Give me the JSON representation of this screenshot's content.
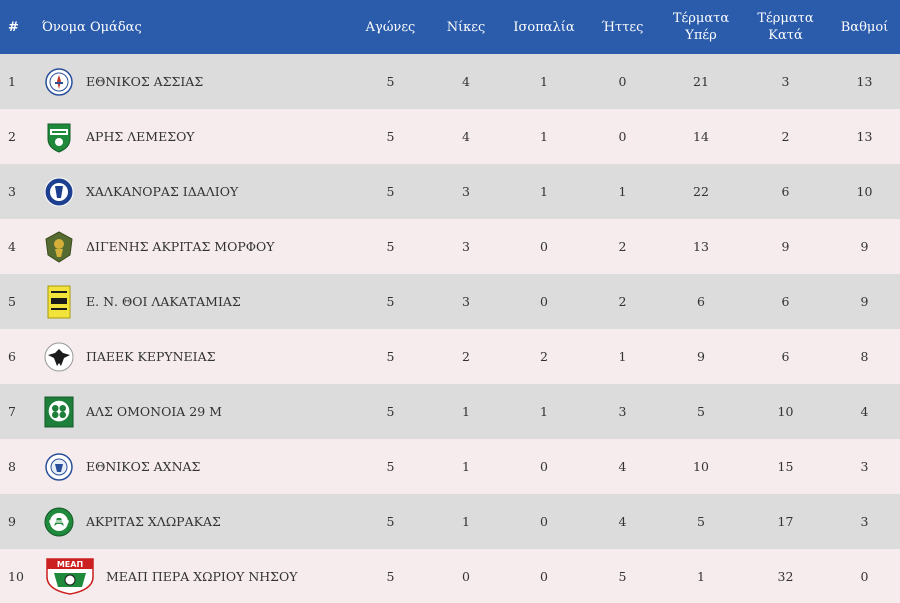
{
  "header": {
    "rank": "#",
    "team": "Όνομα Ομάδας",
    "played": "Αγώνες",
    "wins": "Νίκες",
    "draws": "Ισοπαλία",
    "losses": "Ήττες",
    "goals_for_1": "Τέρματα",
    "goals_for_2": "Υπέρ",
    "goals_against_1": "Τέρματα",
    "goals_against_2": "Κατά",
    "points": "Βαθμοί"
  },
  "colors": {
    "header_bg": "#2b5cab",
    "row_odd": "#dcdcdc",
    "row_even": "#f6ecee"
  },
  "rows": [
    {
      "rank": "1",
      "team": "ΕΘΝΙΚΟΣ ΑΣΣΙΑΣ",
      "logo_icon": "ethnikos-assias-crest-icon",
      "played": "5",
      "wins": "4",
      "draws": "1",
      "losses": "0",
      "gf": "21",
      "ga": "3",
      "pts": "13"
    },
    {
      "rank": "2",
      "team": "ΑΡΗΣ ΛΕΜΕΣΟΥ",
      "logo_icon": "aris-limassol-crest-icon",
      "played": "5",
      "wins": "4",
      "draws": "1",
      "losses": "0",
      "gf": "14",
      "ga": "2",
      "pts": "13"
    },
    {
      "rank": "3",
      "team": "ΧΑΛΚΑΝΟΡΑΣ ΙΔΑΛΙΟΥ",
      "logo_icon": "chalkanoras-crest-icon",
      "played": "5",
      "wins": "3",
      "draws": "1",
      "losses": "1",
      "gf": "22",
      "ga": "6",
      "pts": "10"
    },
    {
      "rank": "4",
      "team": "ΔΙΓΕΝΗΣ ΑΚΡΙΤΑΣ ΜΟΡΦΟΥ",
      "logo_icon": "digenis-morfou-crest-icon",
      "played": "5",
      "wins": "3",
      "draws": "0",
      "losses": "2",
      "gf": "13",
      "ga": "9",
      "pts": "9"
    },
    {
      "rank": "5",
      "team": "Ε. Ν. ΘΟΙ ΛΑΚΑΤΑΜΙΑΣ",
      "logo_icon": "thoi-lakatamias-crest-icon",
      "played": "5",
      "wins": "3",
      "draws": "0",
      "losses": "2",
      "gf": "6",
      "ga": "6",
      "pts": "9"
    },
    {
      "rank": "6",
      "team": "ΠΑΕΕΚ ΚΕΡΥΝΕΙΑΣ",
      "logo_icon": "paeek-eagle-crest-icon",
      "played": "5",
      "wins": "2",
      "draws": "2",
      "losses": "1",
      "gf": "9",
      "ga": "6",
      "pts": "8"
    },
    {
      "rank": "7",
      "team": "ΑΛΣ ΟΜΟΝΟΙΑ 29 Μ",
      "logo_icon": "omonoia-clover-crest-icon",
      "played": "5",
      "wins": "1",
      "draws": "1",
      "losses": "3",
      "gf": "5",
      "ga": "10",
      "pts": "4"
    },
    {
      "rank": "8",
      "team": "ΕΘΝΙΚΟΣ ΑΧΝΑΣ",
      "logo_icon": "ethnikos-achnas-crest-icon",
      "played": "5",
      "wins": "1",
      "draws": "0",
      "losses": "4",
      "gf": "10",
      "ga": "15",
      "pts": "3"
    },
    {
      "rank": "9",
      "team": "ΑΚΡΙΤΑΣ ΧΛΩΡΑΚΑΣ",
      "logo_icon": "akritas-chlorakas-crest-icon",
      "played": "5",
      "wins": "1",
      "draws": "0",
      "losses": "4",
      "gf": "5",
      "ga": "17",
      "pts": "3"
    },
    {
      "rank": "10",
      "team": "ΜΕΑΠ ΠΕΡΑ ΧΩΡΙΟΥ ΝΗΣΟΥ",
      "logo_icon": "meap-crest-icon",
      "logo_text": "ΜΕΑΠ",
      "played": "5",
      "wins": "0",
      "draws": "0",
      "losses": "5",
      "gf": "1",
      "ga": "32",
      "pts": "0"
    }
  ]
}
